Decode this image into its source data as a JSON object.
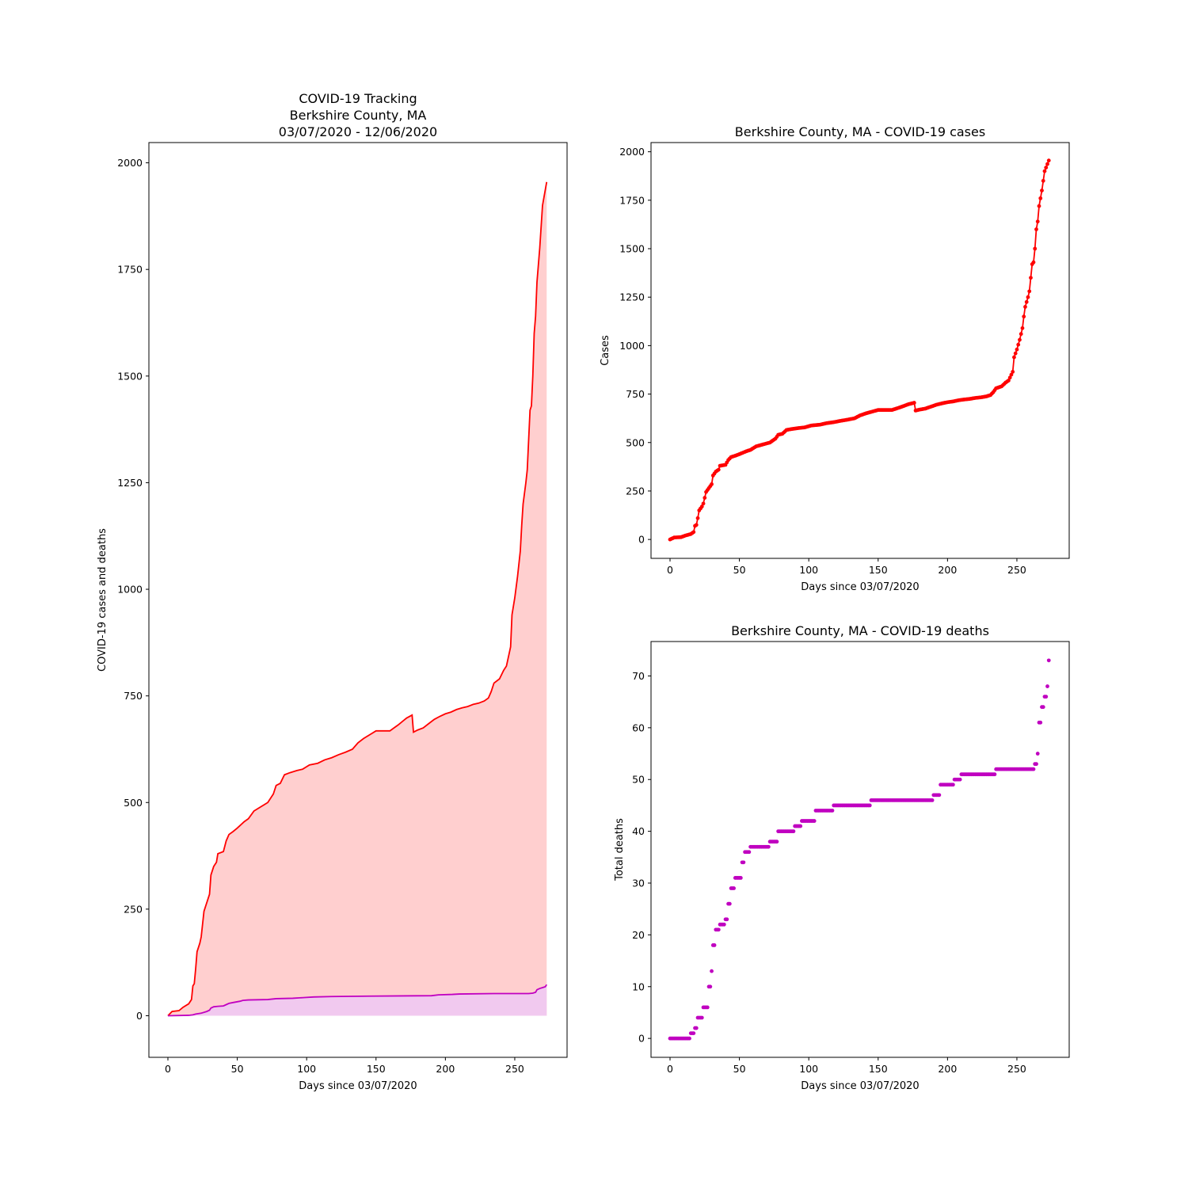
{
  "chart_data": [
    {
      "type": "area",
      "title_lines": [
        "COVID-19 Tracking",
        "Berkshire County, MA",
        "03/07/2020 - 12/06/2020"
      ],
      "xlabel": "Days since 03/07/2020",
      "ylabel": "COVID-19 cases and deaths",
      "xlim": [
        -13.7,
        287.7
      ],
      "ylim": [
        -97.5,
        2047.5
      ],
      "xticks": [
        0,
        50,
        100,
        150,
        200,
        250
      ],
      "yticks": [
        0,
        250,
        500,
        750,
        1000,
        1250,
        1500,
        1750,
        2000
      ],
      "series": [
        {
          "key": "cases",
          "color": "#ff0000",
          "fill": "#ffcccc",
          "points": [
            [
              0,
              0
            ],
            [
              3,
              10
            ],
            [
              8,
              12
            ],
            [
              11,
              20
            ],
            [
              15,
              28
            ],
            [
              17,
              38
            ],
            [
              18,
              70
            ],
            [
              19,
              75
            ],
            [
              20,
              110
            ],
            [
              21,
              150
            ],
            [
              23,
              170
            ],
            [
              24,
              185
            ],
            [
              26,
              245
            ],
            [
              27,
              255
            ],
            [
              29,
              275
            ],
            [
              30,
              285
            ],
            [
              31,
              330
            ],
            [
              33,
              350
            ],
            [
              35,
              360
            ],
            [
              36,
              380
            ],
            [
              40,
              385
            ],
            [
              42,
              410
            ],
            [
              44,
              425
            ],
            [
              47,
              432
            ],
            [
              50,
              440
            ],
            [
              55,
              455
            ],
            [
              58,
              462
            ],
            [
              62,
              480
            ],
            [
              67,
              490
            ],
            [
              72,
              500
            ],
            [
              76,
              520
            ],
            [
              78,
              540
            ],
            [
              81,
              545
            ],
            [
              84,
              565
            ],
            [
              88,
              570
            ],
            [
              93,
              575
            ],
            [
              97,
              578
            ],
            [
              102,
              588
            ],
            [
              108,
              592
            ],
            [
              113,
              600
            ],
            [
              118,
              605
            ],
            [
              123,
              612
            ],
            [
              128,
              618
            ],
            [
              133,
              625
            ],
            [
              137,
              640
            ],
            [
              141,
              650
            ],
            [
              146,
              660
            ],
            [
              150,
              668
            ],
            [
              155,
              668
            ],
            [
              160,
              668
            ],
            [
              163,
              675
            ],
            [
              166,
              682
            ],
            [
              169,
              690
            ],
            [
              172,
              698
            ],
            [
              176,
              705
            ],
            [
              177,
              665
            ],
            [
              180,
              670
            ],
            [
              184,
              675
            ],
            [
              188,
              685
            ],
            [
              192,
              695
            ],
            [
              196,
              702
            ],
            [
              200,
              708
            ],
            [
              204,
              712
            ],
            [
              208,
              718
            ],
            [
              212,
              722
            ],
            [
              216,
              725
            ],
            [
              220,
              730
            ],
            [
              224,
              733
            ],
            [
              228,
              738
            ],
            [
              231,
              745
            ],
            [
              233,
              760
            ],
            [
              235,
              780
            ],
            [
              239,
              790
            ],
            [
              242,
              810
            ],
            [
              244,
              820
            ],
            [
              246,
              850
            ],
            [
              247,
              865
            ],
            [
              248,
              940
            ],
            [
              250,
              980
            ],
            [
              252,
              1030
            ],
            [
              254,
              1090
            ],
            [
              255,
              1150
            ],
            [
              256,
              1200
            ],
            [
              258,
              1250
            ],
            [
              259,
              1280
            ],
            [
              261,
              1420
            ],
            [
              262,
              1430
            ],
            [
              263,
              1500
            ],
            [
              264,
              1600
            ],
            [
              265,
              1640
            ],
            [
              266,
              1720
            ],
            [
              268,
              1800
            ],
            [
              270,
              1900
            ],
            [
              273,
              1955
            ]
          ]
        },
        {
          "key": "deaths",
          "color": "#c000c0",
          "fill": "#f0c8f0",
          "points": [
            [
              0,
              0
            ],
            [
              15,
              1
            ],
            [
              18,
              2
            ],
            [
              20,
              4
            ],
            [
              24,
              6
            ],
            [
              28,
              10
            ],
            [
              30,
              13
            ],
            [
              31,
              18
            ],
            [
              33,
              21
            ],
            [
              36,
              22
            ],
            [
              40,
              23
            ],
            [
              42,
              26
            ],
            [
              44,
              29
            ],
            [
              47,
              31
            ],
            [
              52,
              34
            ],
            [
              54,
              36
            ],
            [
              58,
              37
            ],
            [
              72,
              38
            ],
            [
              78,
              40
            ],
            [
              90,
              41
            ],
            [
              95,
              42
            ],
            [
              105,
              44
            ],
            [
              118,
              45
            ],
            [
              145,
              46
            ],
            [
              190,
              47
            ],
            [
              195,
              49
            ],
            [
              205,
              50
            ],
            [
              210,
              51
            ],
            [
              235,
              52
            ],
            [
              260,
              52
            ],
            [
              263,
              53
            ],
            [
              265,
              55
            ],
            [
              266,
              61
            ],
            [
              268,
              64
            ],
            [
              270,
              66
            ],
            [
              272,
              68
            ],
            [
              273,
              73
            ]
          ]
        }
      ]
    },
    {
      "type": "line",
      "title": "Berkshire County, MA - COVID-19 cases",
      "xlabel": "Days since 03/07/2020",
      "ylabel": "Cases",
      "xlim": [
        -13.7,
        287.7
      ],
      "ylim": [
        -97.5,
        2047.5
      ],
      "xticks": [
        0,
        50,
        100,
        150,
        200,
        250
      ],
      "yticks": [
        0,
        250,
        500,
        750,
        1000,
        1250,
        1500,
        1750,
        2000
      ],
      "series": [
        {
          "key": "cases",
          "color": "#ff0000",
          "marker": "dot",
          "points_from": 0
        }
      ]
    },
    {
      "type": "scatter",
      "title": "Berkshire County, MA - COVID-19 deaths",
      "xlabel": "Days since 03/07/2020",
      "ylabel": "Total deaths",
      "xlim": [
        -13.7,
        287.7
      ],
      "ylim": [
        -3.65,
        76.65
      ],
      "xticks": [
        0,
        50,
        100,
        150,
        200,
        250
      ],
      "yticks": [
        0,
        10,
        20,
        30,
        40,
        50,
        60,
        70
      ],
      "series": [
        {
          "key": "deaths",
          "color": "#c000c0",
          "marker": "dot",
          "points_from": 0
        }
      ]
    }
  ]
}
